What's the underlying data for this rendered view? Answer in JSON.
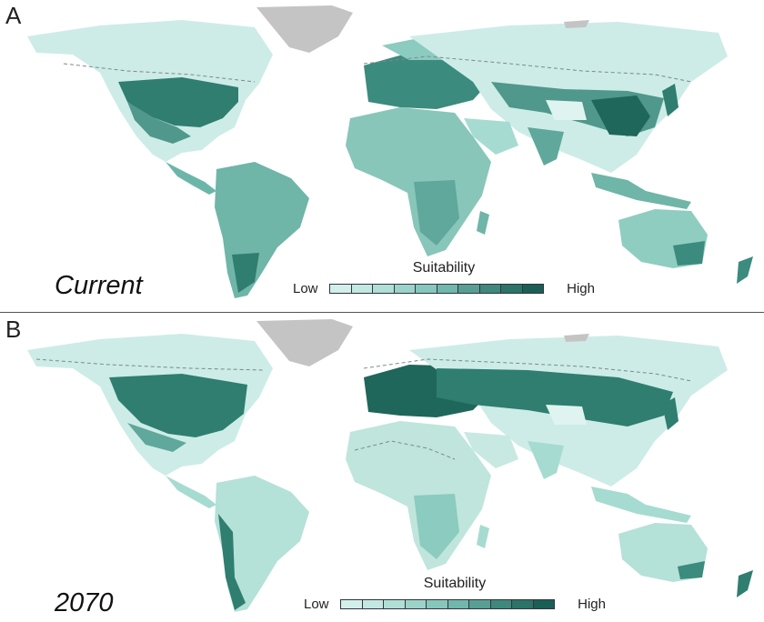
{
  "panels": [
    {
      "letter": "A",
      "scenario": "Current"
    },
    {
      "letter": "B",
      "scenario": "2070"
    }
  ],
  "legend": {
    "title": "Suitability",
    "low": "Low",
    "high": "High"
  },
  "palette": [
    "#d2efea",
    "#c3e8e1",
    "#b0dfd6",
    "#9cd3c9",
    "#86c7bb",
    "#6fb8ab",
    "#579f93",
    "#3e897c",
    "#2b7467",
    "#1a5f55"
  ],
  "colors": {
    "land_base": "#d4efeb",
    "ice": "#c4c4c4",
    "boundary": "#7a8a8a"
  }
}
